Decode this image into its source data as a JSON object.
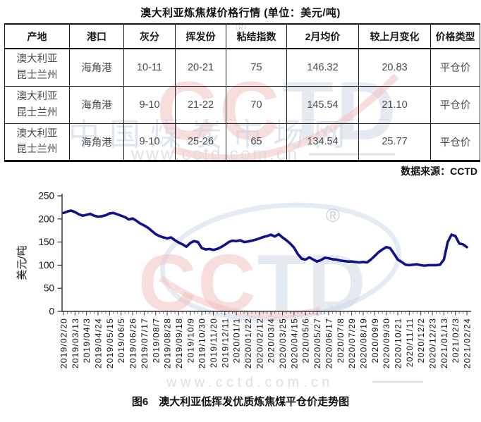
{
  "title": "澳大利亚炼焦煤价格行情  (单位：美元/吨)",
  "table": {
    "headers": [
      "产地",
      "港口",
      "灰分",
      "挥发份",
      "粘结指数",
      "2月均价",
      "较上月变化",
      "价格类型"
    ],
    "rows": [
      [
        "澳大利亚\n昆士兰州",
        "海角港",
        "10-11",
        "20-21",
        "75",
        "146.32",
        "20.83",
        "平仓价"
      ],
      [
        "澳大利亚\n昆士兰州",
        "海角港",
        "9-10",
        "21-22",
        "70",
        "145.54",
        "21.10",
        "平仓价"
      ],
      [
        "澳大利亚\n昆士兰州",
        "海角港",
        "9-10",
        "25-26",
        "65",
        "134.54",
        "25.77",
        "平仓价"
      ]
    ]
  },
  "source": "数据来源：CCTD",
  "caption": "图6　澳大利亚低挥发优质炼焦煤平仓价走势图",
  "watermarks": {
    "brand": "CCTD",
    "registered_mark": "®",
    "site_name": "中国煤炭市场网",
    "site_url": "www.cctd.com.cn",
    "colors": {
      "red": "#f1bcbc",
      "blue": "#cbd5e3",
      "gray": "#dcdcdc"
    }
  },
  "chart_data": {
    "type": "line",
    "title": "",
    "xlabel": "",
    "ylabel": "美元/吨",
    "ylim": [
      0,
      250
    ],
    "yticks": [
      0,
      50,
      100,
      150,
      200,
      250
    ],
    "grid": false,
    "legend": "none",
    "x_interval": "weekly",
    "ticks_every_n_points": 3,
    "x_tick_labels": [
      "2019/02/20",
      "2019/03/13",
      "2019/04/3",
      "2019/04/24",
      "2019/05/15",
      "2019/06/5",
      "2019/06/26",
      "2019/07/17",
      "2019/08/7",
      "2019/08/28",
      "2019/09/18",
      "2019/10/9",
      "2019/10/30",
      "2019/11/20",
      "2019/12/11",
      "2020/01/1",
      "2020/01/22",
      "2020/02/12",
      "2020/03/4",
      "2020/03/25",
      "2020/04/15",
      "2020/05/6",
      "2020/05/27",
      "2020/06/17",
      "2020/07/8",
      "2020/07/29",
      "2020/08/19",
      "2020/09/9",
      "2020/09/30",
      "2020/10/21",
      "2020/11/11",
      "2020/12/2",
      "2020/12/23",
      "2021/01/13",
      "2021/02/3",
      "2021/02/24"
    ],
    "series": [
      {
        "name": "澳大利亚低挥发优质炼焦煤平仓价",
        "color": "#11118a",
        "values": [
          213,
          216,
          218,
          215,
          210,
          207,
          209,
          211,
          207,
          205,
          206,
          208,
          212,
          213,
          210,
          207,
          204,
          199,
          201,
          196,
          190,
          186,
          181,
          174,
          167,
          163,
          160,
          158,
          160,
          154,
          149,
          145,
          140,
          148,
          152,
          150,
          137,
          134,
          135,
          133,
          135,
          139,
          144,
          150,
          153,
          152,
          154,
          150,
          151,
          153,
          155,
          158,
          161,
          163,
          166,
          162,
          167,
          160,
          154,
          147,
          138,
          124,
          114,
          112,
          117,
          112,
          108,
          111,
          116,
          115,
          113,
          112,
          110,
          109,
          108,
          108,
          107,
          106,
          107,
          106,
          112,
          120,
          128,
          134,
          139,
          137,
          125,
          112,
          107,
          101,
          100,
          101,
          102,
          100,
          99,
          100,
          100,
          100,
          101,
          112,
          150,
          166,
          163,
          147,
          145,
          139
        ]
      }
    ]
  }
}
